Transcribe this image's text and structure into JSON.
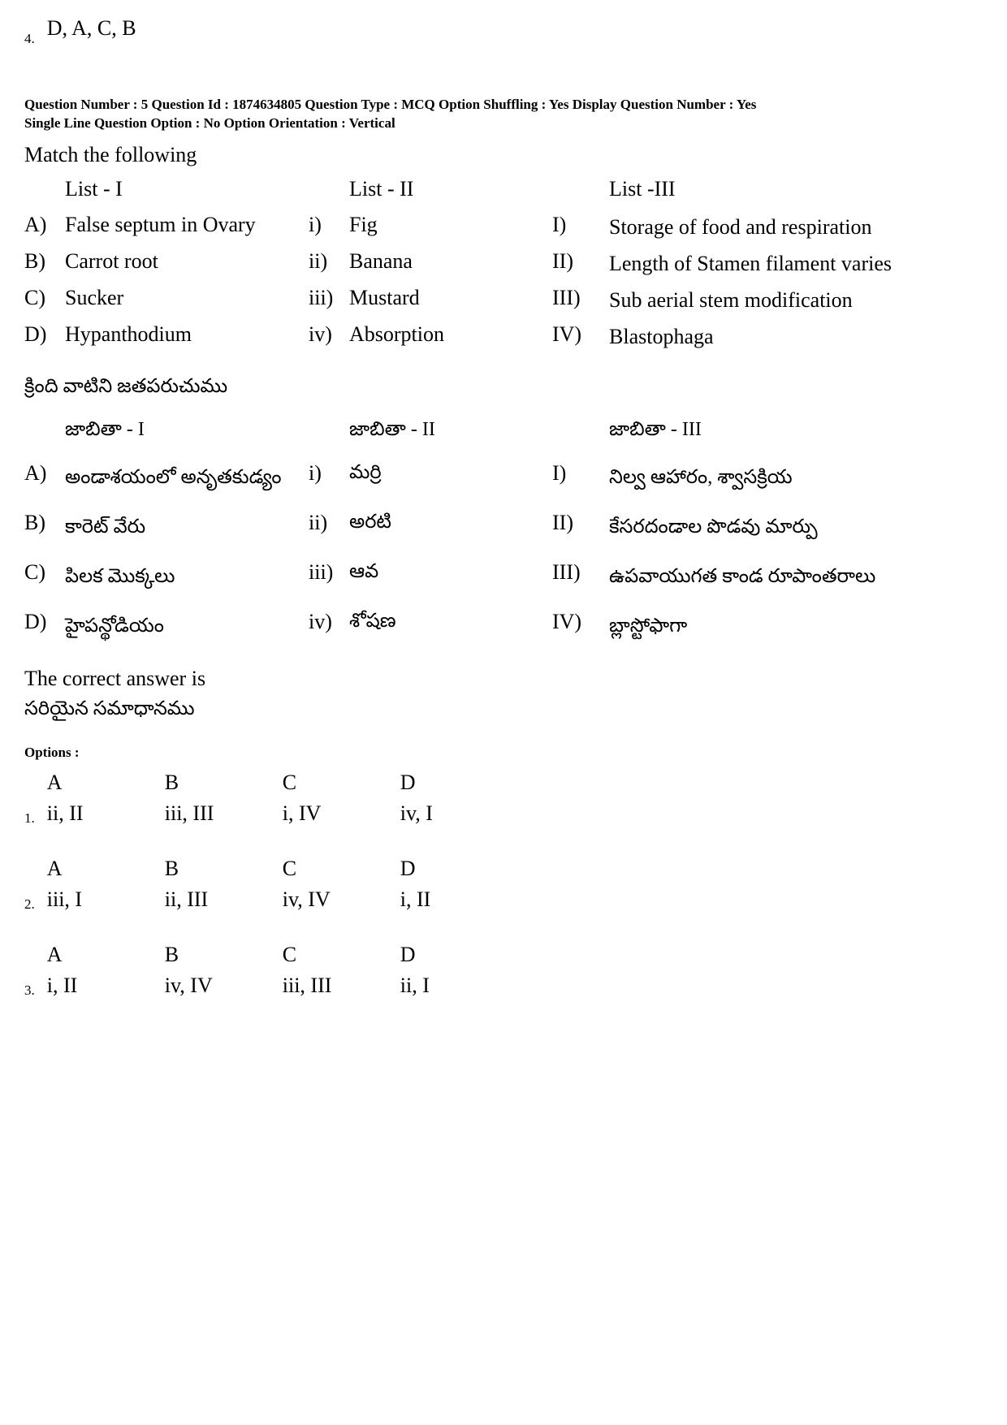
{
  "prev_option": {
    "number": "4.",
    "text": "D, A, C, B"
  },
  "meta": {
    "line1": "Question Number : 5  Question Id : 1874634805  Question Type : MCQ  Option Shuffling : Yes  Display Question Number : Yes",
    "line2": "Single Line Question Option : No  Option Orientation : Vertical"
  },
  "instruction_en": "Match the following",
  "headers": {
    "list1": "List - I",
    "list2": "List - II",
    "list3": "List -III"
  },
  "rows_en": [
    {
      "la": "A)",
      "c1": "False septum in Ovary",
      "lb": "i)",
      "c2": "Fig",
      "lc": "I)",
      "c3": "Storage of food and respiration"
    },
    {
      "la": "B)",
      "c1": "Carrot root",
      "lb": "ii)",
      "c2": "Banana",
      "lc": "II)",
      "c3": "Length of Stamen filament varies"
    },
    {
      "la": "C)",
      "c1": "Sucker",
      "lb": "iii)",
      "c2": "Mustard",
      "lc": "III)",
      "c3": "Sub aerial stem modification"
    },
    {
      "la": "D)",
      "c1": "Hypanthodium",
      "lb": "iv)",
      "c2": "Absorption",
      "lc": "IV)",
      "c3": "Blastophaga"
    }
  ],
  "instruction_te": "క్రింది వాటిని జతపరుచుము",
  "headers_te": {
    "list1": "జాబితా - I",
    "list2": "జాబితా - II",
    "list3": "జాబితా - III"
  },
  "rows_te": [
    {
      "la": "A)",
      "c1": "అండాశయంలో అనృతకుడ్యం",
      "lb": "i)",
      "c2": "మర్రి",
      "lc": "I)",
      "c3": "నిల్వ ఆహారం, శ్వాసక్రియ"
    },
    {
      "la": "B)",
      "c1": "కారెట్ వేరు",
      "lb": "ii)",
      "c2": "అరటి",
      "lc": "II)",
      "c3": "కేసరదండాల పొడవు మార్పు"
    },
    {
      "la": "C)",
      "c1": "పిలక మొక్కలు",
      "lb": "iii)",
      "c2": "ఆవ",
      "lc": "III)",
      "c3": "ఉపవాయుగత కాండ రూపాంతరాలు"
    },
    {
      "la": "D)",
      "c1": "హైపన్థోడియం",
      "lb": "iv)",
      "c2": "శోషణ",
      "lc": "IV)",
      "c3": "బ్లాస్టోఫాగా"
    }
  ],
  "answer_en": "The correct answer is",
  "answer_te": "సరియైన సమాధానము",
  "options_label": "Options :",
  "options": [
    {
      "num": "1.",
      "header": [
        "A",
        "B",
        "C",
        "D"
      ],
      "values": [
        "ii, II",
        "iii, III",
        "i, IV",
        "iv, I"
      ]
    },
    {
      "num": "2.",
      "header": [
        "A",
        "B",
        "C",
        "D"
      ],
      "values": [
        "iii, I",
        "ii, III",
        "iv, IV",
        "i, II"
      ]
    },
    {
      "num": "3.",
      "header": [
        "A",
        "B",
        "C",
        "D"
      ],
      "values": [
        "i, II",
        "iv, IV",
        "iii, III",
        "ii, I"
      ]
    }
  ]
}
